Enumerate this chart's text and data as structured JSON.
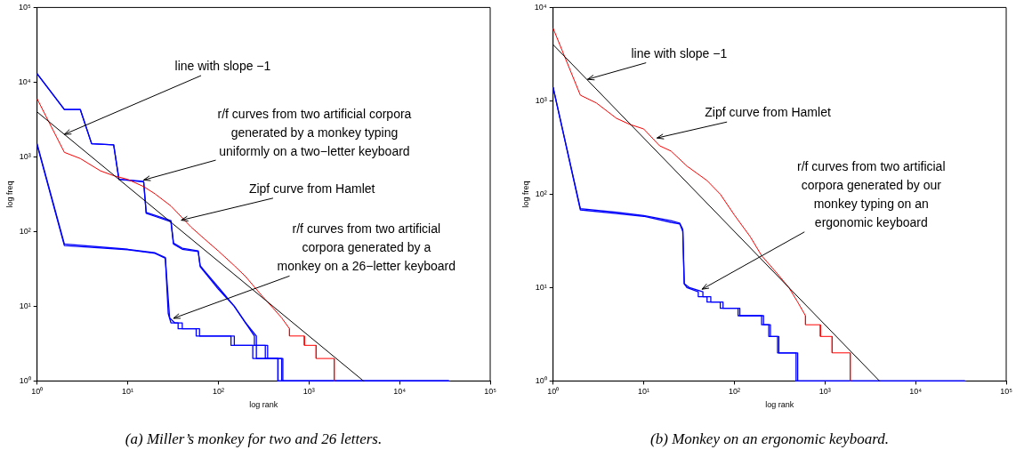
{
  "chart_data": [
    {
      "type": "line",
      "xlabel": "log rank",
      "ylabel": "log freq",
      "log": "xy",
      "marker": "none",
      "line_style": "solid",
      "xlim": [
        1,
        100000
      ],
      "ylim": [
        1,
        100000
      ],
      "xticks": [
        {
          "value": 1,
          "label": "10⁰"
        },
        {
          "value": 10,
          "label": "10¹"
        },
        {
          "value": 100,
          "label": "10²"
        },
        {
          "value": 1000,
          "label": "10³"
        },
        {
          "value": 10000,
          "label": "10⁴"
        },
        {
          "value": 100000,
          "label": "10⁵"
        }
      ],
      "yticks": [
        {
          "value": 1,
          "label": "10⁰"
        },
        {
          "value": 10,
          "label": "10¹"
        },
        {
          "value": 100,
          "label": "10²"
        },
        {
          "value": 1000,
          "label": "10³"
        },
        {
          "value": 10000,
          "label": "10⁴"
        },
        {
          "value": 100000,
          "label": "10⁵"
        }
      ],
      "series": [
        {
          "color": "#000000",
          "x": [
            1,
            4000
          ],
          "values": [
            4000,
            1
          ]
        },
        {
          "color": "#ff0000",
          "x": [
            1,
            2,
            3,
            5,
            7,
            10,
            15,
            20,
            30,
            50,
            70,
            100,
            150,
            200,
            300,
            400,
            500,
            610,
            610,
            890,
            890,
            1200,
            1200,
            1900,
            1900
          ],
          "values": [
            6000,
            1150,
            950,
            650,
            560,
            500,
            400,
            320,
            220,
            115,
            80,
            55,
            35,
            25,
            14,
            9.5,
            7,
            5,
            4,
            4,
            3,
            3,
            2,
            2,
            1
          ]
        },
        {
          "color": "#0000ff",
          "x": [
            1,
            2,
            3,
            4,
            7,
            8,
            15,
            16,
            20,
            30,
            32,
            40,
            60,
            63,
            70,
            100,
            150,
            200,
            263,
            263,
            350,
            350,
            515,
            515,
            35000
          ],
          "values": [
            13000,
            4300,
            4300,
            1500,
            1450,
            500,
            470,
            180,
            165,
            140,
            70,
            60,
            55,
            35,
            30,
            18,
            10,
            6,
            4,
            3,
            3,
            2,
            2,
            1,
            1
          ]
        },
        {
          "color": "#0000ff",
          "x": [
            1,
            2,
            3,
            4,
            7,
            8,
            15,
            16,
            20,
            30,
            32,
            40,
            60,
            63,
            70,
            100,
            150,
            200,
            250,
            250,
            330,
            330,
            455,
            455,
            35000
          ],
          "values": [
            13000,
            4300,
            4300,
            1500,
            1450,
            500,
            460,
            175,
            160,
            135,
            68,
            58,
            54,
            34,
            29,
            17,
            10,
            6,
            4,
            3,
            3,
            2,
            2,
            1,
            1
          ]
        },
        {
          "color": "#0000ff",
          "x": [
            1,
            2,
            10,
            20,
            26,
            28,
            30,
            36,
            36,
            62,
            62,
            138,
            138,
            263,
            263,
            455,
            455,
            35000
          ],
          "values": [
            1500,
            68,
            58,
            52,
            45,
            8,
            6,
            6,
            5,
            5,
            4,
            4,
            3,
            3,
            2,
            2,
            1,
            1
          ]
        },
        {
          "color": "#0000ff",
          "x": [
            1,
            2,
            10,
            20,
            26,
            29,
            33,
            40,
            40,
            57,
            57,
            150,
            150,
            240,
            240,
            500,
            500,
            35000
          ],
          "values": [
            1450,
            65,
            57,
            51,
            44,
            7,
            6,
            6,
            5,
            5,
            4,
            4,
            3,
            3,
            2,
            2,
            1,
            1
          ]
        }
      ],
      "annotations": [
        {
          "text": "line with slope −1",
          "x": 2,
          "y": 2000
        },
        {
          "text": "r/f curves from two artificial corpora\ngenerated by a monkey typing\nuniformly on a two−letter keyboard",
          "x": 15,
          "y": 490
        },
        {
          "text": "Zipf curve from Hamlet",
          "x": 39,
          "y": 142
        },
        {
          "text": "r/f curves from two artificial\ncorpora generated by a\nmonkey on a 26−letter keyboard",
          "x": 32,
          "y": 6.9
        },
        "(a) Miller’s monkey for two and 26 letters."
      ]
    },
    {
      "type": "line",
      "xlabel": "log rank",
      "ylabel": "log freq",
      "log": "xy",
      "marker": "none",
      "line_style": "solid",
      "xlim": [
        1,
        100000
      ],
      "ylim": [
        1,
        10000
      ],
      "xticks": [
        {
          "value": 1,
          "label": "10⁰"
        },
        {
          "value": 10,
          "label": "10¹"
        },
        {
          "value": 100,
          "label": "10²"
        },
        {
          "value": 1000,
          "label": "10³"
        },
        {
          "value": 10000,
          "label": "10⁴"
        },
        {
          "value": 100000,
          "label": "10⁵"
        }
      ],
      "yticks": [
        {
          "value": 1,
          "label": "10⁰"
        },
        {
          "value": 10,
          "label": "10¹"
        },
        {
          "value": 100,
          "label": "10²"
        },
        {
          "value": 1000,
          "label": "10³"
        },
        {
          "value": 10000,
          "label": "10⁴"
        }
      ],
      "series": [
        {
          "color": "#000000",
          "x": [
            1,
            4000
          ],
          "values": [
            4000,
            1
          ]
        },
        {
          "color": "#ff0000",
          "x": [
            1,
            2,
            3,
            5,
            7,
            10,
            15,
            20,
            30,
            50,
            70,
            100,
            150,
            200,
            300,
            400,
            500,
            610,
            610,
            890,
            890,
            1200,
            1200,
            1900,
            1900
          ],
          "values": [
            6000,
            1150,
            950,
            650,
            560,
            500,
            330,
            290,
            200,
            140,
            100,
            60,
            35,
            22,
            14,
            10,
            7,
            5,
            4,
            4,
            3,
            3,
            2,
            2,
            1
          ]
        },
        {
          "color": "#0000ff",
          "x": [
            1,
            2,
            5,
            10,
            20,
            25,
            27,
            28,
            30,
            40,
            40,
            50,
            50,
            75,
            75,
            115,
            115,
            210,
            210,
            250,
            250,
            310,
            310,
            480,
            480,
            35000
          ],
          "values": [
            1400,
            68,
            62,
            58,
            50,
            48,
            40,
            11,
            10,
            9,
            8,
            8,
            7,
            7,
            6,
            6,
            5,
            5,
            4,
            4,
            3,
            3,
            2,
            2,
            1,
            1
          ]
        },
        {
          "color": "#0000ff",
          "x": [
            1,
            2,
            5,
            10,
            20,
            25,
            27,
            28,
            32,
            45,
            45,
            55,
            55,
            70,
            70,
            110,
            110,
            200,
            200,
            240,
            240,
            300,
            300,
            500,
            500,
            35000
          ],
          "values": [
            1400,
            70,
            64,
            59,
            52,
            49,
            42,
            11,
            10,
            9,
            8,
            8,
            7,
            7,
            6,
            6,
            5,
            5,
            4,
            4,
            3,
            3,
            2,
            2,
            1,
            1
          ]
        }
      ],
      "annotations": [
        {
          "text": "line with slope −1",
          "x": 2.4,
          "y": 1700
        },
        {
          "text": "Zipf curve from Hamlet",
          "x": 14,
          "y": 400
        },
        {
          "text": "r/f curves from two artificial\ncorpora generated by our\nmonkey typing on an\nergonomic keyboard",
          "x": 44,
          "y": 9.6
        },
        "(b) Monkey on an ergonomic keyboard."
      ]
    }
  ]
}
